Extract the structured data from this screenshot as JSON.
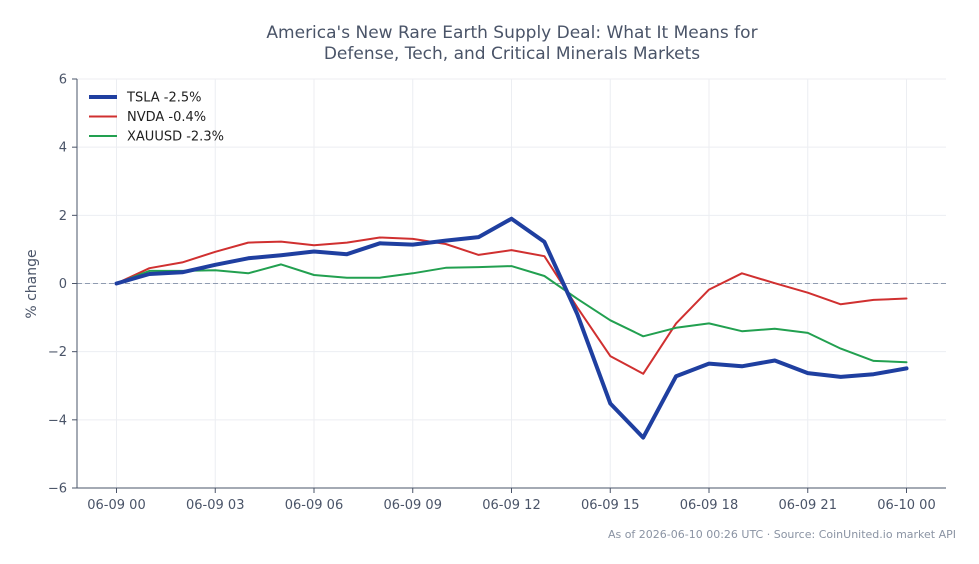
{
  "chart_data": {
    "type": "line",
    "title_lines": [
      "America's New Rare Earth Supply Deal: What It Means for",
      "Defense, Tech, and Critical Minerals Markets"
    ],
    "xlabel": "",
    "ylabel": "% change",
    "ylim": [
      -6,
      6
    ],
    "yticks": [
      -6,
      -4,
      -2,
      0,
      2,
      4,
      6
    ],
    "ytick_labels": [
      "−6",
      "−4",
      "−2",
      "0",
      "2",
      "4",
      "6"
    ],
    "xtick_labels": [
      "06-09 00",
      "06-09 03",
      "06-09 06",
      "06-09 09",
      "06-09 12",
      "06-09 15",
      "06-09 18",
      "06-09 21",
      "06-10 00"
    ],
    "x_hours": [
      0,
      1,
      2,
      3,
      4,
      5,
      6,
      7,
      8,
      9,
      10,
      11,
      12,
      13,
      14,
      15,
      16,
      17,
      18,
      19,
      20,
      21,
      22,
      23,
      24
    ],
    "xlim_hours": [
      -1.2,
      25.2
    ],
    "grid": true,
    "baseline": 0,
    "legend_position": "top-left",
    "series": [
      {
        "name": "TSLA -2.5%",
        "color": "#1f3fa0",
        "width": 4,
        "values": [
          0,
          0.28,
          0.33,
          0.55,
          0.74,
          0.83,
          0.94,
          0.86,
          1.18,
          1.14,
          1.26,
          1.36,
          1.9,
          1.22,
          -0.9,
          -3.52,
          -4.52,
          -2.72,
          -2.35,
          -2.43,
          -2.26,
          -2.63,
          -2.74,
          -2.66,
          -2.49
        ]
      },
      {
        "name": "NVDA -0.4%",
        "color": "#d03030",
        "width": 2,
        "values": [
          0,
          0.45,
          0.62,
          0.93,
          1.2,
          1.23,
          1.12,
          1.2,
          1.35,
          1.31,
          1.16,
          0.84,
          0.98,
          0.8,
          -0.7,
          -2.13,
          -2.65,
          -1.17,
          -0.18,
          0.3,
          0.01,
          -0.27,
          -0.61,
          -0.48,
          -0.44
        ]
      },
      {
        "name": "XAUUSD -2.3%",
        "color": "#22a050",
        "width": 2,
        "values": [
          0,
          0.37,
          0.37,
          0.39,
          0.3,
          0.56,
          0.25,
          0.17,
          0.17,
          0.3,
          0.46,
          0.48,
          0.51,
          0.22,
          -0.45,
          -1.08,
          -1.55,
          -1.3,
          -1.17,
          -1.4,
          -1.33,
          -1.45,
          -1.91,
          -2.27,
          -2.31
        ]
      }
    ],
    "footer": "As of 2026-06-10 00:26 UTC · Source: CoinUnited.io market API"
  }
}
